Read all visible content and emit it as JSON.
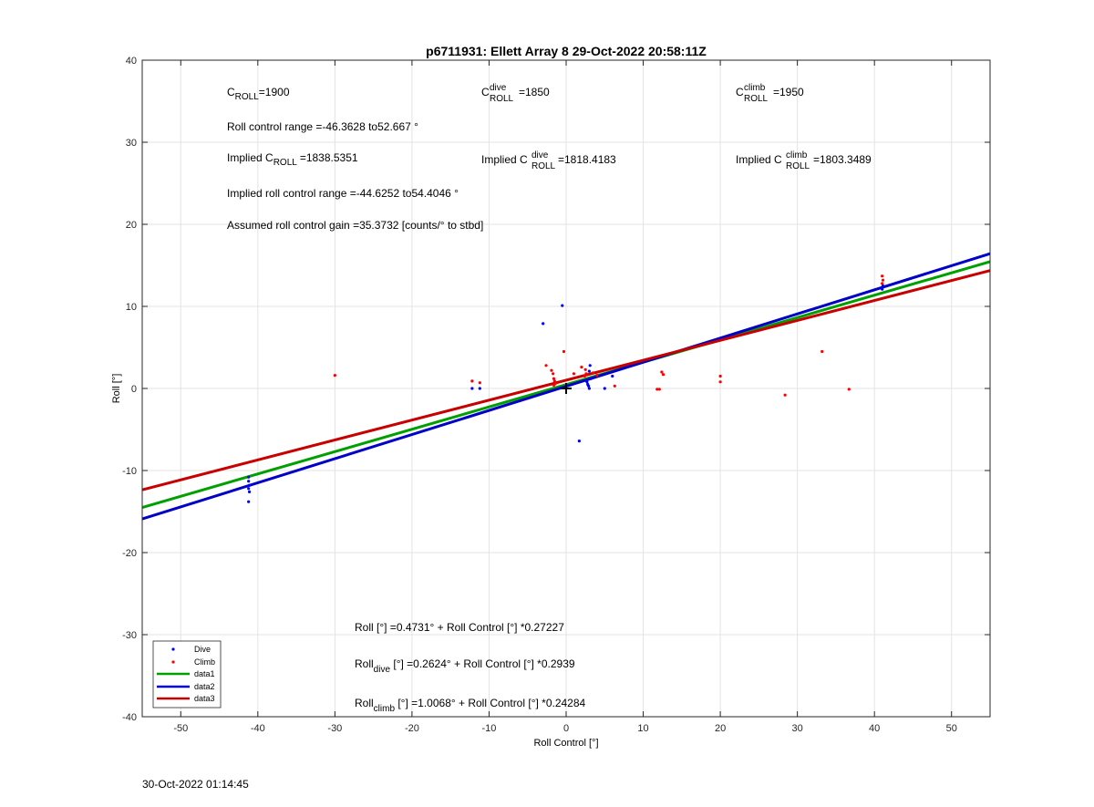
{
  "chart_data": {
    "type": "scatter",
    "title": "p6711931: Ellett Array 8 29-Oct-2022 20:58:11Z",
    "xlabel": "Roll Control [°]",
    "ylabel": "Roll [°]",
    "xlim": [
      -55,
      55
    ],
    "ylim": [
      -40,
      40
    ],
    "xticks": [
      -50,
      -40,
      -30,
      -20,
      -10,
      0,
      10,
      20,
      30,
      40,
      50
    ],
    "yticks": [
      -40,
      -30,
      -20,
      -10,
      0,
      10,
      20,
      30,
      40
    ],
    "grid": true,
    "legend_position": "bottom-left",
    "series": [
      {
        "name": "Dive",
        "kind": "scatter",
        "color": "#0000ff",
        "points": [
          [
            -41.2,
            -10.8
          ],
          [
            -41.2,
            -11.3
          ],
          [
            -41.1,
            -11.8
          ],
          [
            -41.2,
            -12.2
          ],
          [
            -41.1,
            -12.6
          ],
          [
            -41.2,
            -13.8
          ],
          [
            -12.2,
            0.0
          ],
          [
            -11.2,
            0.0
          ],
          [
            -3.0,
            7.9
          ],
          [
            -0.5,
            10.1
          ],
          [
            1.7,
            -6.4
          ],
          [
            2.7,
            0.8
          ],
          [
            2.9,
            0.3
          ],
          [
            3.0,
            2.1
          ],
          [
            3.1,
            2.8
          ],
          [
            3.2,
            1.2
          ],
          [
            3.0,
            0.0
          ],
          [
            2.8,
            0.5
          ],
          [
            5.0,
            0.0
          ],
          [
            6.0,
            1.5
          ],
          [
            41.0,
            12.1
          ],
          [
            41.1,
            12.5
          ]
        ]
      },
      {
        "name": "Climb",
        "kind": "scatter",
        "color": "#ff0000",
        "points": [
          [
            -30.0,
            1.6
          ],
          [
            -12.2,
            0.9
          ],
          [
            -11.2,
            0.7
          ],
          [
            -2.6,
            2.8
          ],
          [
            -1.9,
            2.2
          ],
          [
            -1.7,
            1.8
          ],
          [
            -1.6,
            1.2
          ],
          [
            -1.5,
            0.9
          ],
          [
            -1.4,
            0.6
          ],
          [
            -1.6,
            0.4
          ],
          [
            -0.3,
            4.5
          ],
          [
            1.0,
            1.8
          ],
          [
            2.0,
            2.6
          ],
          [
            2.5,
            2.3
          ],
          [
            2.6,
            1.8
          ],
          [
            2.4,
            1.5
          ],
          [
            3.5,
            1.9
          ],
          [
            4.0,
            1.6
          ],
          [
            6.3,
            0.3
          ],
          [
            11.8,
            -0.1
          ],
          [
            12.1,
            -0.1
          ],
          [
            12.4,
            2.0
          ],
          [
            12.6,
            1.7
          ],
          [
            20.0,
            1.5
          ],
          [
            20.0,
            0.8
          ],
          [
            28.4,
            -0.8
          ],
          [
            33.2,
            4.5
          ],
          [
            36.7,
            -0.1
          ],
          [
            41.0,
            13.7
          ],
          [
            41.1,
            13.2
          ],
          [
            41.0,
            12.8
          ]
        ]
      },
      {
        "name": "data1",
        "kind": "line",
        "color": "#00a000",
        "intercept": 0.4731,
        "slope": 0.27227
      },
      {
        "name": "data2",
        "kind": "line",
        "color": "#0000c8",
        "intercept": 0.2624,
        "slope": 0.2939
      },
      {
        "name": "data3",
        "kind": "line",
        "color": "#c80000",
        "intercept": 1.0068,
        "slope": 0.24284
      }
    ],
    "cross_marker": [
      0,
      0
    ],
    "annotations": {
      "c_roll": {
        "base": "C",
        "sub": "ROLL",
        "sup": "",
        "value": "=1900"
      },
      "c_roll_dive": {
        "base": "C",
        "sub": "ROLL",
        "sup": "dive",
        "value": "=1850"
      },
      "c_roll_climb": {
        "base": "C",
        "sub": "ROLL",
        "sup": "climb",
        "value": "=1950"
      },
      "roll_control_range": "Roll control range =-46.3628 to52.667 °",
      "implied_c_roll": {
        "prefix": "Implied C",
        "sub": "ROLL",
        "value": "=1838.5351"
      },
      "implied_c_roll_dive": {
        "prefix": "Implied C",
        "sub": "ROLL",
        "sup": "dive",
        "value": "=1818.4183"
      },
      "implied_c_roll_climb": {
        "prefix": "Implied C",
        "sub": "ROLL",
        "sup": "climb",
        "value": "=1803.3489"
      },
      "implied_range": "Implied roll control range =-44.6252 to54.4046 °",
      "assumed_gain": "Assumed roll control gain =35.3732 [counts/° to stbd]",
      "fit_all": {
        "prefix": "Roll",
        "sub": "",
        "rest": " [°] =0.4731° + Roll Control [°] *0.27227"
      },
      "fit_dive": {
        "prefix": "Roll",
        "sub": "dive",
        "rest": " [°] =0.2624° + Roll Control [°] *0.2939"
      },
      "fit_climb": {
        "prefix": "Roll",
        "sub": "climb",
        "rest": " [°] =1.0068° + Roll Control [°] *0.24284"
      }
    }
  },
  "footer": {
    "timestamp": "30-Oct-2022 01:14:45"
  }
}
